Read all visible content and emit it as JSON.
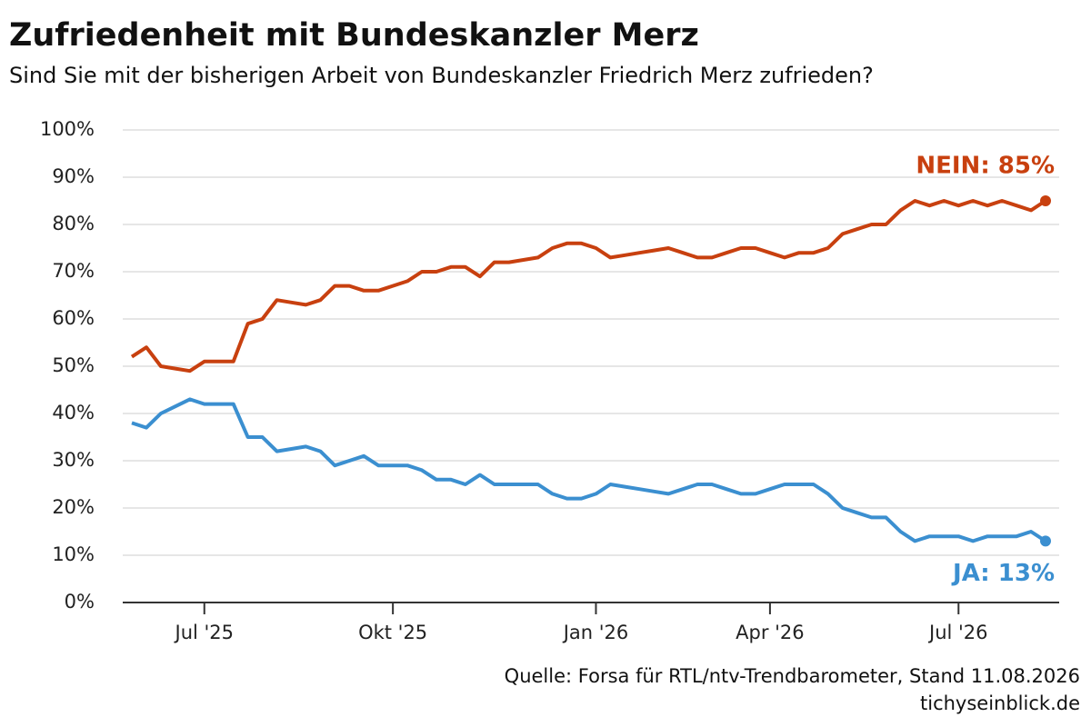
{
  "chart_data": {
    "type": "line",
    "title": "Zufriedenheit mit Bundeskanzler Merz",
    "subtitle": "Sind Sie mit der bisherigen Arbeit von Bundeskanzler Friedrich Merz zufrieden?",
    "source": "Quelle: Forsa für RTL/ntv-Trendbarometer, Stand 11.08.2026",
    "site": "tichyseinblick.de",
    "categories": [
      null,
      null,
      null,
      null,
      null,
      "Jul '25",
      null,
      null,
      null,
      null,
      null,
      null,
      null,
      null,
      null,
      null,
      null,
      null,
      "Okt '25",
      null,
      null,
      null,
      null,
      null,
      null,
      null,
      null,
      null,
      null,
      null,
      null,
      null,
      "Jan '26",
      null,
      null,
      null,
      null,
      null,
      null,
      null,
      null,
      null,
      null,
      null,
      "Apr '26",
      null,
      null,
      null,
      null,
      null,
      null,
      null,
      null,
      null,
      null,
      null,
      null,
      "Jul '26",
      null,
      null,
      null,
      null,
      null,
      null
    ],
    "series": [
      {
        "name": "NEIN: 85%",
        "color": "#c8400f",
        "values": [
          52,
          54,
          50,
          49.5,
          49,
          51,
          51,
          51,
          59,
          60,
          64,
          63.5,
          63,
          64,
          67,
          67,
          66,
          66,
          67,
          68,
          70,
          70,
          71,
          71,
          69,
          72,
          72,
          72.5,
          73,
          75,
          76,
          76,
          75,
          73,
          73.5,
          74,
          74.5,
          75,
          74,
          73,
          73,
          74,
          75,
          75,
          74,
          73,
          74,
          74,
          75,
          78,
          79,
          80,
          80,
          83,
          85,
          84,
          85,
          84,
          85,
          84,
          85,
          84,
          83,
          85
        ]
      },
      {
        "name": "JA: 13%",
        "color": "#3b8fd0",
        "values": [
          38,
          37,
          40,
          41.5,
          43,
          42,
          42,
          42,
          35,
          35,
          32,
          32.5,
          33,
          32,
          29,
          30,
          31,
          29,
          29,
          29,
          28,
          26,
          26,
          25,
          27,
          25,
          25,
          25,
          25,
          23,
          22,
          22,
          23,
          25,
          24.5,
          24,
          23.5,
          23,
          24,
          25,
          25,
          24,
          23,
          23,
          24,
          25,
          25,
          25,
          23,
          20,
          19,
          18,
          18,
          15,
          13,
          14,
          14,
          14,
          13,
          14,
          14,
          14,
          15,
          13
        ]
      }
    ],
    "ylim": [
      0,
      100
    ],
    "yticks": [
      {
        "value": 0,
        "label": "0%"
      },
      {
        "value": 10,
        "label": "10%"
      },
      {
        "value": 20,
        "label": "20%"
      },
      {
        "value": 30,
        "label": "30%"
      },
      {
        "value": 40,
        "label": "40%"
      },
      {
        "value": 50,
        "label": "50%"
      },
      {
        "value": 60,
        "label": "60%"
      },
      {
        "value": 70,
        "label": "70%"
      },
      {
        "value": 80,
        "label": "80%"
      },
      {
        "value": 90,
        "label": "90%"
      },
      {
        "value": 100,
        "label": "100%"
      }
    ],
    "grid": true
  }
}
